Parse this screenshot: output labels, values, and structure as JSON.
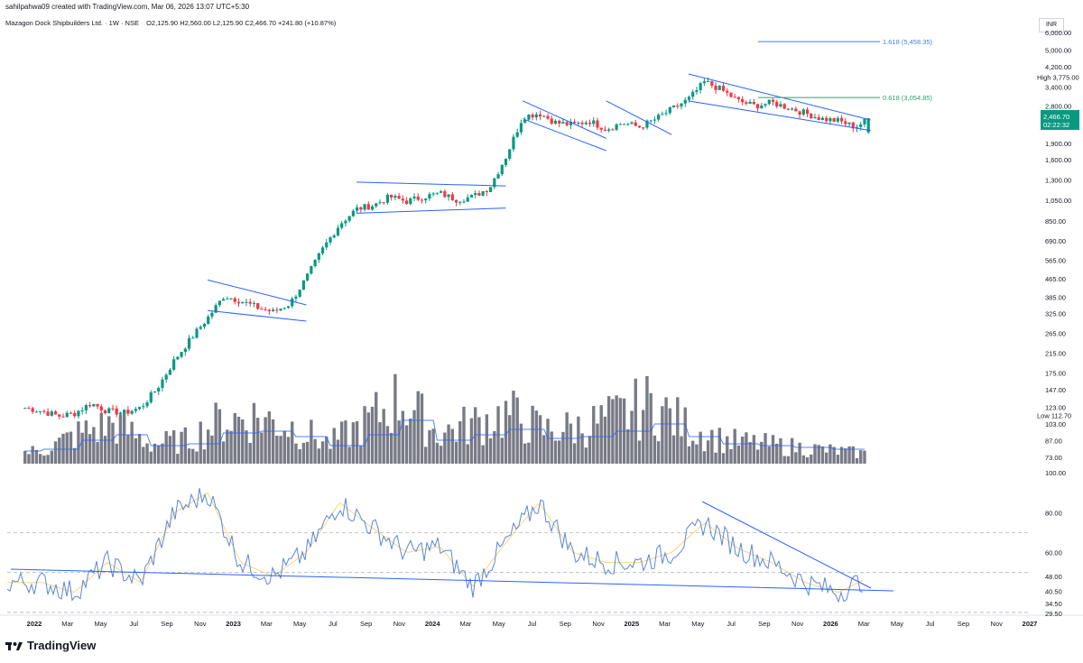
{
  "header": {
    "credit": "sahilpahwa09 created with TradingView.com, Mar 06, 2026 13:07 UTC+5:30",
    "symbol": "Mazagon Dock Shipbuilders Ltd. · 1W · NSE",
    "ohlc": "O2,125.90  H2,560.00  L2,125.90  C2,466.70  +241.80 (+10.87%)",
    "currency": "INR"
  },
  "footer": {
    "brand": "TradingView",
    "logo_icon": "tradingview-logo-icon"
  },
  "colors": {
    "up": "#089981",
    "down": "#f23645",
    "trendline": "#2962ff",
    "volume": "#787b86",
    "rsi": "#5b87d9",
    "rsi_ma": "#f7d676",
    "fib": "#4a7ce8",
    "fib_mid": "#2ba36f"
  },
  "chart_data": [
    {
      "type": "candlestick",
      "title": "Mazagon Dock Shipbuilders Ltd. · 1W · NSE",
      "scale": "log",
      "ylim": [
        73,
        6000
      ],
      "y_ticks": [
        "6,000.00",
        "5,000.00",
        "4,200.00",
        "3,400.00",
        "2,800.00",
        "2,400.00",
        "1,900.00",
        "1,600.00",
        "1,300.00",
        "1,050.00",
        "850.00",
        "690.00",
        "565.00",
        "465.00",
        "385.00",
        "325.00",
        "265.00",
        "215.00",
        "175.00",
        "147.00",
        "123.00",
        "103.00",
        "87.00",
        "73.00"
      ],
      "x_ticks": [
        "2022",
        "Mar",
        "May",
        "Jul",
        "Sep",
        "Nov",
        "2023",
        "Mar",
        "May",
        "Jul",
        "Sep",
        "Nov",
        "2024",
        "Mar",
        "May",
        "Jul",
        "Sep",
        "Nov",
        "2025",
        "Mar",
        "May",
        "Jul",
        "Sep",
        "Nov",
        "2026",
        "Mar",
        "May",
        "Jul",
        "Sep",
        "Nov",
        "2027"
      ],
      "x_range": [
        "2022-01",
        "2027-01"
      ],
      "weekly_closes_approx": [
        [
          "2021-12",
          122
        ],
        [
          "2022-01",
          118
        ],
        [
          "2022-02",
          112
        ],
        [
          "2022-03",
          115
        ],
        [
          "2022-04",
          128
        ],
        [
          "2022-05",
          118
        ],
        [
          "2022-06",
          116
        ],
        [
          "2022-07",
          122
        ],
        [
          "2022-08",
          150
        ],
        [
          "2022-09",
          200
        ],
        [
          "2022-10",
          250
        ],
        [
          "2022-11",
          310
        ],
        [
          "2022-12",
          390
        ],
        [
          "2023-01",
          370
        ],
        [
          "2023-02",
          345
        ],
        [
          "2023-03",
          330
        ],
        [
          "2023-04",
          360
        ],
        [
          "2023-05",
          470
        ],
        [
          "2023-06",
          640
        ],
        [
          "2023-07",
          820
        ],
        [
          "2023-08",
          960
        ],
        [
          "2023-09",
          1000
        ],
        [
          "2023-10",
          1090
        ],
        [
          "2023-11",
          1040
        ],
        [
          "2023-12",
          1090
        ],
        [
          "2024-01",
          1130
        ],
        [
          "2024-02",
          1060
        ],
        [
          "2024-03",
          1090
        ],
        [
          "2024-04",
          1200
        ],
        [
          "2024-05",
          1650
        ],
        [
          "2024-06",
          2500
        ],
        [
          "2024-07",
          2600
        ],
        [
          "2024-08",
          2350
        ],
        [
          "2024-09",
          2300
        ],
        [
          "2024-10",
          2400
        ],
        [
          "2024-11",
          2200
        ],
        [
          "2024-12",
          2350
        ],
        [
          "2025-01",
          2250
        ],
        [
          "2025-02",
          2450
        ],
        [
          "2025-03",
          2700
        ],
        [
          "2025-04",
          3000
        ],
        [
          "2025-05",
          3600
        ],
        [
          "2025-06",
          3300
        ],
        [
          "2025-07",
          2950
        ],
        [
          "2025-08",
          2800
        ],
        [
          "2025-09",
          2900
        ],
        [
          "2025-10",
          2750
        ],
        [
          "2025-11",
          2600
        ],
        [
          "2025-12",
          2450
        ],
        [
          "2026-01",
          2400
        ],
        [
          "2026-02",
          2250
        ],
        [
          "2026-03",
          2466.7
        ]
      ],
      "last_price": "2,466.70",
      "last_price_timer": "02:22:32",
      "high_label": "High",
      "high_value": "3,775.00",
      "low_label": "Low",
      "low_value": "112.70",
      "fib_levels": [
        {
          "label": "1.618 (5,458.35)",
          "value": 5458.35
        },
        {
          "label": "0.618 (3,054.85)",
          "value": 3054.85
        }
      ]
    },
    {
      "type": "bar",
      "series": [
        {
          "values_relative": [
            0.15,
            0.2,
            0.45,
            0.6,
            0.3,
            0.35,
            0.65,
            0.7,
            0.55,
            0.3,
            0.6,
            1.0,
            0.45,
            0.6,
            0.75,
            0.5,
            0.55,
            0.7,
            0.9,
            0.55,
            0.35,
            0.3,
            0.25,
            0.2,
            0.15
          ]
        }
      ],
      "overlay": "volume moving average"
    },
    {
      "type": "line",
      "series": [
        {
          "name": "RSI"
        },
        {
          "name": "RSI MA"
        }
      ],
      "ylim": [
        25,
        100
      ],
      "y_ticks": [
        "100.00",
        "80.00",
        "60.00",
        "48.00",
        "40.50",
        "34.50",
        "29.50"
      ],
      "dashed_levels": [
        70,
        50,
        30
      ],
      "rsi_approx": [
        [
          "2022-01",
          45
        ],
        [
          "2022-03",
          40
        ],
        [
          "2022-05",
          55
        ],
        [
          "2022-07",
          45
        ],
        [
          "2022-09",
          80
        ],
        [
          "2022-11",
          90
        ],
        [
          "2023-01",
          55
        ],
        [
          "2023-03",
          48
        ],
        [
          "2023-05",
          60
        ],
        [
          "2023-07",
          85
        ],
        [
          "2023-09",
          72
        ],
        [
          "2023-11",
          60
        ],
        [
          "2024-01",
          63
        ],
        [
          "2024-03",
          43
        ],
        [
          "2024-05",
          65
        ],
        [
          "2024-07",
          85
        ],
        [
          "2024-09",
          60
        ],
        [
          "2024-11",
          55
        ],
        [
          "2025-01",
          55
        ],
        [
          "2025-03",
          60
        ],
        [
          "2025-05",
          75
        ],
        [
          "2025-07",
          62
        ],
        [
          "2025-09",
          55
        ],
        [
          "2025-11",
          45
        ],
        [
          "2026-01",
          40
        ],
        [
          "2026-03",
          48
        ]
      ]
    }
  ]
}
